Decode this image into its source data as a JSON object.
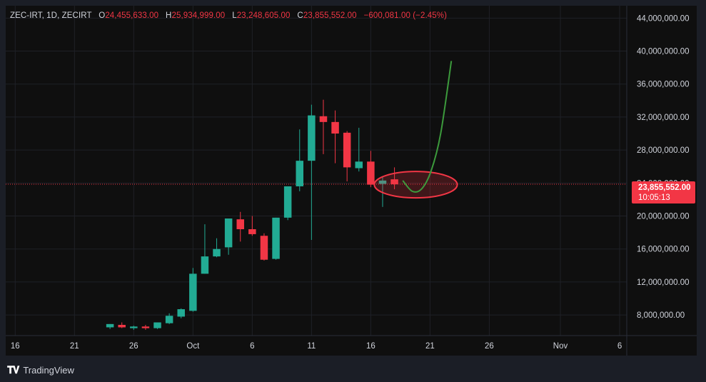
{
  "header": {
    "symbol": "ZEC-IRT, 1D, ZECIRT",
    "open_label": "O",
    "open": "24,455,633.00",
    "high_label": "H",
    "high": "25,934,999.00",
    "low_label": "L",
    "low": "23,248,605.00",
    "close_label": "C",
    "close": "23,855,552.00",
    "change": "−600,081.00 (−2.45%)"
  },
  "price_tag": {
    "price": "23,855,552.00",
    "countdown": "10:05:13"
  },
  "branding": {
    "name": "TradingView"
  },
  "colors": {
    "up": "#22ab94",
    "down": "#f23645",
    "grid": "#1f2127",
    "background": "#0f0f0f",
    "projection": "#3c9a3c"
  },
  "chart_data": {
    "type": "candlestick",
    "current_price": 23855552,
    "ylim": [
      5500000,
      45500000
    ],
    "y_ticks": [
      {
        "value": 8000000,
        "label": "8,000,000.00"
      },
      {
        "value": 12000000,
        "label": "12,000,000.00"
      },
      {
        "value": 16000000,
        "label": "16,000,000.00"
      },
      {
        "value": 20000000,
        "label": "20,000,000.00"
      },
      {
        "value": 24000000,
        "label": "24,000,000.00"
      },
      {
        "value": 28000000,
        "label": "28,000,000.00"
      },
      {
        "value": 32000000,
        "label": "32,000,000.00"
      },
      {
        "value": 36000000,
        "label": "36,000,000.00"
      },
      {
        "value": 40000000,
        "label": "40,000,000.00"
      },
      {
        "value": 44000000,
        "label": "44,000,000.00"
      }
    ],
    "x_ticks": [
      {
        "day": 16,
        "label": "16"
      },
      {
        "day": 21,
        "label": "21"
      },
      {
        "day": 26,
        "label": "26"
      },
      {
        "day": 31,
        "label": "Oct"
      },
      {
        "day": 36,
        "label": "6"
      },
      {
        "day": 41,
        "label": "11"
      },
      {
        "day": 46,
        "label": "16"
      },
      {
        "day": 51,
        "label": "21"
      },
      {
        "day": 56,
        "label": "26"
      },
      {
        "day": 62,
        "label": "Nov"
      },
      {
        "day": 67,
        "label": "6"
      }
    ],
    "xlim": [
      15.2,
      67.6
    ],
    "candles": [
      {
        "day": 24,
        "o": 6500000,
        "h": 6900000,
        "l": 6300000,
        "c": 6900000
      },
      {
        "day": 25,
        "o": 6800000,
        "h": 7100000,
        "l": 6400000,
        "c": 6500000
      },
      {
        "day": 26,
        "o": 6400000,
        "h": 6700000,
        "l": 6200000,
        "c": 6600000
      },
      {
        "day": 27,
        "o": 6600000,
        "h": 6800000,
        "l": 6200000,
        "c": 6400000
      },
      {
        "day": 28,
        "o": 6400000,
        "h": 7100000,
        "l": 6300000,
        "c": 7100000
      },
      {
        "day": 29,
        "o": 7000000,
        "h": 8200000,
        "l": 6900000,
        "c": 7900000
      },
      {
        "day": 30,
        "o": 7800000,
        "h": 8800000,
        "l": 7600000,
        "c": 8700000
      },
      {
        "day": 31,
        "o": 8500000,
        "h": 13700000,
        "l": 8400000,
        "c": 13000000
      },
      {
        "day": 32,
        "o": 13000000,
        "h": 19000000,
        "l": 13000000,
        "c": 15100000
      },
      {
        "day": 33,
        "o": 15100000,
        "h": 17300000,
        "l": 15000000,
        "c": 16000000
      },
      {
        "day": 34,
        "o": 16200000,
        "h": 19700000,
        "l": 15300000,
        "c": 19700000
      },
      {
        "day": 35,
        "o": 19600000,
        "h": 20500000,
        "l": 16900000,
        "c": 18400000
      },
      {
        "day": 36,
        "o": 18400000,
        "h": 20000000,
        "l": 17600000,
        "c": 17800000
      },
      {
        "day": 37,
        "o": 17600000,
        "h": 17900000,
        "l": 14600000,
        "c": 14700000
      },
      {
        "day": 38,
        "o": 14800000,
        "h": 19800000,
        "l": 14700000,
        "c": 19800000
      },
      {
        "day": 39,
        "o": 19800000,
        "h": 23600000,
        "l": 19500000,
        "c": 23600000
      },
      {
        "day": 40,
        "o": 23600000,
        "h": 30500000,
        "l": 23000000,
        "c": 26700000
      },
      {
        "day": 41,
        "o": 26700000,
        "h": 33500000,
        "l": 17100000,
        "c": 32200000
      },
      {
        "day": 42,
        "o": 32100000,
        "h": 34100000,
        "l": 27500000,
        "c": 31400000
      },
      {
        "day": 43,
        "o": 31400000,
        "h": 32800000,
        "l": 26400000,
        "c": 30000000
      },
      {
        "day": 44,
        "o": 30100000,
        "h": 30300000,
        "l": 24200000,
        "c": 25900000
      },
      {
        "day": 45,
        "o": 25800000,
        "h": 30700000,
        "l": 25400000,
        "c": 26600000
      },
      {
        "day": 46,
        "o": 26600000,
        "h": 27900000,
        "l": 23500000,
        "c": 23800000
      },
      {
        "day": 47,
        "o": 23900000,
        "h": 24700000,
        "l": 21100000,
        "c": 24300000
      },
      {
        "day": 48,
        "o": 24450000,
        "h": 25900000,
        "l": 23250000,
        "c": 23850000
      }
    ],
    "projection": [
      {
        "day": 48.7,
        "v": 24300000
      },
      {
        "day": 49.5,
        "v": 23000000
      },
      {
        "day": 50.3,
        "v": 23300000
      },
      {
        "day": 51.1,
        "v": 25500000
      },
      {
        "day": 51.9,
        "v": 30000000
      },
      {
        "day": 52.8,
        "v": 38800000
      }
    ],
    "highlight": {
      "day": 49.8,
      "v": 23800000,
      "rx_days": 3.5,
      "ry_value": 1600000
    }
  }
}
